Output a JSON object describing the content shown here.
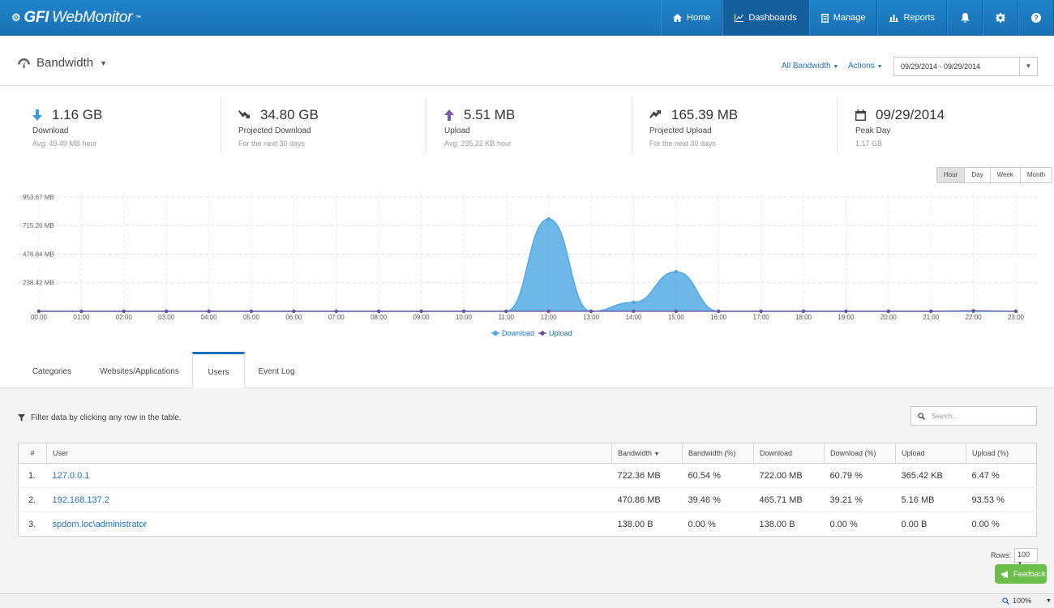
{
  "app": {
    "logo_bold": "GFI",
    "logo_light": "WebMonitor",
    "logo_tm": "™"
  },
  "nav": [
    {
      "label": "Home",
      "icon": "home-icon"
    },
    {
      "label": "Dashboards",
      "icon": "chart-line-icon",
      "active": true
    },
    {
      "label": "Manage",
      "icon": "document-icon"
    },
    {
      "label": "Reports",
      "icon": "bar-chart-icon"
    },
    {
      "label": "",
      "icon": "bell-icon"
    },
    {
      "label": "",
      "icon": "gear-icon"
    },
    {
      "label": "",
      "icon": "help-icon"
    }
  ],
  "header": {
    "title": "Bandwidth",
    "all_bandwidth": "All Bandwidth",
    "actions": "Actions",
    "date_range": "09/29/2014 - 09/29/2014"
  },
  "stats": [
    {
      "value": "1.16 GB",
      "label": "Download",
      "sub": "Avg: 49.49 MB hour",
      "icon": "arrow-down-icon",
      "color": "#3b9ee0"
    },
    {
      "value": "34.80 GB",
      "label": "Projected Download",
      "sub": "For the next 30 days",
      "icon": "trend-down-icon",
      "color": "#444444"
    },
    {
      "value": "5.51 MB",
      "label": "Upload",
      "sub": "Avg: 235.22 KB hour",
      "icon": "arrow-up-icon",
      "color": "#7a5aa6"
    },
    {
      "value": "165.39 MB",
      "label": "Projected Upload",
      "sub": "For the next 30 days",
      "icon": "trend-up-icon",
      "color": "#444444"
    },
    {
      "value": "09/29/2014",
      "label": "Peak Day",
      "sub": "1.17 GB",
      "icon": "calendar-icon",
      "color": "#444444"
    }
  ],
  "granularity": [
    "Hour",
    "Day",
    "Week",
    "Month"
  ],
  "chart_data": {
    "type": "area",
    "x": [
      "00:00",
      "01:00",
      "02:00",
      "03:00",
      "04:00",
      "05:00",
      "06:00",
      "07:00",
      "08:00",
      "09:00",
      "10:00",
      "11:00",
      "12:00",
      "13:00",
      "14:00",
      "15:00",
      "16:00",
      "17:00",
      "18:00",
      "19:00",
      "20:00",
      "21:00",
      "22:00",
      "23:00"
    ],
    "series": [
      {
        "name": "Download",
        "color": "#4ea7e4",
        "values": [
          0,
          0,
          0,
          0,
          0,
          0,
          0,
          0,
          0,
          0,
          0,
          0,
          770,
          0,
          75,
          330,
          0,
          0,
          0,
          0,
          0,
          0,
          0,
          0
        ]
      },
      {
        "name": "Upload",
        "color": "#6b4fa0",
        "values": [
          0,
          0,
          0,
          0,
          0,
          0,
          0,
          0,
          0,
          0,
          0,
          0,
          0,
          0,
          0,
          0,
          0,
          0,
          0,
          0,
          0,
          0,
          4,
          0
        ]
      }
    ],
    "y_ticks": [
      "953.67 MB",
      "715.26 MB",
      "476.84 MB",
      "238.42 MB"
    ],
    "y_tick_values": [
      953.67,
      715.26,
      476.84,
      238.42
    ],
    "ylim": [
      0,
      953.67
    ],
    "grid": true,
    "legend": "bottom"
  },
  "tabs": [
    {
      "label": "Categories"
    },
    {
      "label": "Websites/Applications"
    },
    {
      "label": "Users",
      "active": true
    },
    {
      "label": "Event Log"
    }
  ],
  "filter_note": "Filter data by clicking any row in the table.",
  "search": {
    "placeholder": "Search..."
  },
  "table": {
    "columns": [
      "#",
      "User",
      "Bandwidth",
      "Bandwidth (%)",
      "Download",
      "Download (%)",
      "Upload",
      "Upload (%)"
    ],
    "rows": [
      [
        "1.",
        "127.0.0.1",
        "722.36 MB",
        "60.54 %",
        "722.00 MB",
        "60.79 %",
        "365.42 KB",
        "6.47 %"
      ],
      [
        "2.",
        "192.168.137.2",
        "470.86 MB",
        "39.46 %",
        "465.71 MB",
        "39.21 %",
        "5.16 MB",
        "93.53 %"
      ],
      [
        "3.",
        "spdom.loc\\administrator",
        "138.00 B",
        "0.00 %",
        "138.00 B",
        "0.00 %",
        "0.00 B",
        "0.00 %"
      ]
    ]
  },
  "rows_label": "Rows:",
  "rows_value": "100",
  "feedback": "Feedback",
  "zoom": "100%"
}
